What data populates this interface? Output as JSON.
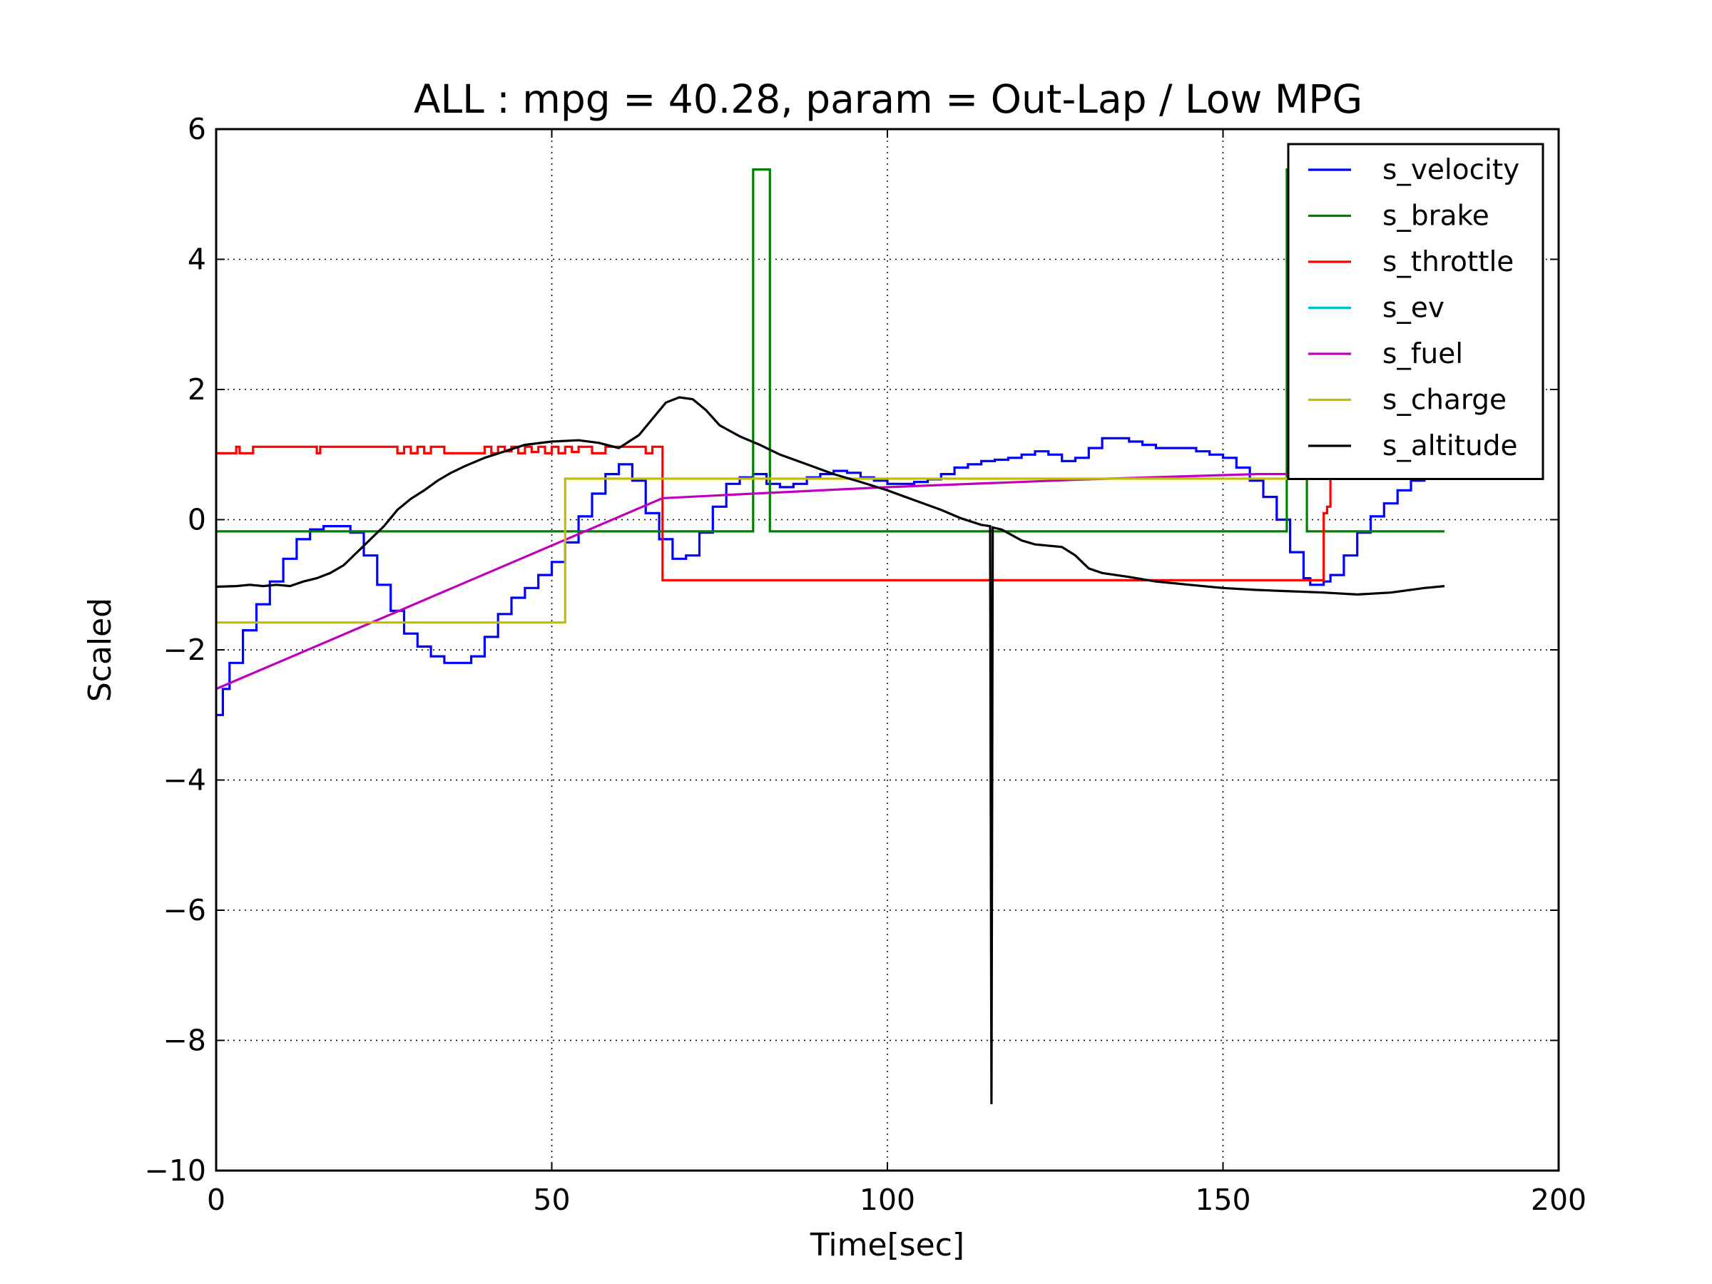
{
  "chart_data": {
    "type": "line",
    "title": "ALL : mpg = 40.28, param = Out-Lap / Low MPG",
    "xlabel": "Time[sec]",
    "ylabel": "Scaled",
    "xlim": [
      0,
      200
    ],
    "ylim": [
      -10,
      6
    ],
    "xticks": [
      0,
      50,
      100,
      150,
      200
    ],
    "yticks": [
      -10,
      -8,
      -6,
      -4,
      -2,
      0,
      2,
      4,
      6
    ],
    "xtick_labels": [
      "0",
      "50",
      "100",
      "150",
      "200"
    ],
    "ytick_labels": [
      "−10",
      "−8",
      "−6",
      "−4",
      "−2",
      "0",
      "2",
      "4",
      "6"
    ],
    "grid": true,
    "legend_position": "top-right",
    "series": [
      {
        "name": "s_velocity",
        "color": "#0000ff",
        "step": true,
        "x": [
          0,
          1,
          2,
          4,
          6,
          8,
          10,
          12,
          14,
          16,
          18,
          20,
          22,
          24,
          26,
          28,
          30,
          32,
          34,
          36,
          38,
          40,
          42,
          44,
          46,
          48,
          50,
          52,
          54,
          56,
          58,
          60,
          62,
          64,
          66,
          68,
          70,
          72,
          74,
          76,
          78,
          80,
          82,
          84,
          86,
          88,
          90,
          92,
          94,
          96,
          98,
          100,
          102,
          104,
          106,
          108,
          110,
          112,
          114,
          116,
          118,
          120,
          122,
          124,
          126,
          128,
          130,
          132,
          134,
          136,
          138,
          140,
          142,
          144,
          146,
          148,
          150,
          152,
          154,
          156,
          158,
          160,
          162,
          163,
          164,
          165,
          166,
          168,
          170,
          172,
          174,
          176,
          178,
          180,
          183
        ],
        "y": [
          -3.0,
          -2.6,
          -2.2,
          -1.7,
          -1.3,
          -0.95,
          -0.6,
          -0.3,
          -0.15,
          -0.1,
          -0.1,
          -0.2,
          -0.55,
          -1.0,
          -1.4,
          -1.75,
          -1.95,
          -2.1,
          -2.2,
          -2.2,
          -2.1,
          -1.8,
          -1.45,
          -1.2,
          -1.05,
          -0.85,
          -0.65,
          -0.35,
          0.05,
          0.4,
          0.7,
          0.85,
          0.6,
          0.1,
          -0.3,
          -0.6,
          -0.55,
          -0.2,
          0.2,
          0.55,
          0.65,
          0.7,
          0.55,
          0.5,
          0.55,
          0.65,
          0.7,
          0.75,
          0.72,
          0.65,
          0.6,
          0.55,
          0.55,
          0.58,
          0.62,
          0.7,
          0.8,
          0.85,
          0.9,
          0.92,
          0.95,
          1.0,
          1.05,
          1.0,
          0.9,
          0.95,
          1.1,
          1.25,
          1.25,
          1.2,
          1.15,
          1.1,
          1.1,
          1.1,
          1.05,
          1.0,
          0.95,
          0.8,
          0.6,
          0.35,
          0.0,
          -0.5,
          -0.9,
          -1.0,
          -1.0,
          -0.95,
          -0.85,
          -0.55,
          -0.2,
          0.05,
          0.25,
          0.45,
          0.6,
          0.7,
          0.7
        ]
      },
      {
        "name": "s_brake",
        "color": "#008000",
        "step": true,
        "x": [
          0,
          80,
          82.5,
          159.5,
          162.5,
          183
        ],
        "y": [
          -0.18,
          5.38,
          -0.18,
          5.38,
          -0.18,
          -0.18
        ]
      },
      {
        "name": "s_throttle",
        "color": "#ff0000",
        "step": true,
        "x": [
          0,
          3,
          3.5,
          5.5,
          15,
          15.5,
          27,
          28,
          29,
          30,
          31,
          32,
          34,
          36,
          40,
          41,
          42,
          43,
          44,
          45,
          46,
          47,
          48,
          49,
          50,
          51,
          52,
          53,
          54,
          56,
          58,
          60,
          62,
          64,
          65,
          66.5,
          164.5,
          165,
          165.5,
          166
        ],
        "y": [
          1.02,
          1.12,
          1.02,
          1.12,
          1.02,
          1.12,
          1.02,
          1.12,
          1.02,
          1.12,
          1.02,
          1.12,
          1.02,
          1.02,
          1.12,
          1.02,
          1.12,
          1.05,
          1.12,
          1.02,
          1.12,
          1.04,
          1.12,
          1.02,
          1.12,
          1.02,
          1.12,
          1.04,
          1.12,
          1.02,
          1.12,
          1.12,
          1.12,
          1.02,
          1.12,
          -0.93,
          -0.93,
          0.1,
          0.2,
          0.65
        ]
      },
      {
        "name": "s_ev",
        "color": "#00bfbf",
        "step": false,
        "x": [
          0
        ],
        "y": [
          0
        ]
      },
      {
        "name": "s_fuel",
        "color": "#bf00bf",
        "step": false,
        "x": [
          0,
          66.5,
          80,
          100,
          130,
          155,
          164
        ],
        "y": [
          -2.6,
          0.33,
          0.4,
          0.5,
          0.62,
          0.7,
          0.7
        ]
      },
      {
        "name": "s_charge",
        "color": "#bfbf00",
        "step": true,
        "x": [
          0,
          52,
          183
        ],
        "y": [
          -1.58,
          0.63,
          0.63
        ]
      },
      {
        "name": "s_altitude",
        "color": "#000000",
        "step": false,
        "x": [
          0,
          3,
          5,
          7,
          9,
          11,
          13,
          15,
          17,
          19,
          21,
          23,
          25,
          27,
          29,
          31,
          33,
          35,
          37,
          40,
          43,
          46,
          50,
          54,
          57,
          60,
          63,
          65,
          67,
          69,
          71,
          73,
          75,
          78,
          81,
          84,
          88,
          92,
          96,
          100,
          104,
          108,
          111,
          114,
          115.3,
          115.5,
          115.7,
          117,
          120,
          122,
          126,
          128,
          130,
          132,
          136,
          140,
          145,
          150,
          155,
          160,
          165,
          170,
          175,
          180,
          183
        ],
        "y": [
          -1.03,
          -1.02,
          -1.0,
          -1.02,
          -1.0,
          -1.02,
          -0.95,
          -0.9,
          -0.82,
          -0.7,
          -0.5,
          -0.3,
          -0.1,
          0.15,
          0.32,
          0.45,
          0.6,
          0.72,
          0.82,
          0.95,
          1.05,
          1.15,
          1.2,
          1.22,
          1.18,
          1.1,
          1.3,
          1.55,
          1.8,
          1.88,
          1.85,
          1.68,
          1.45,
          1.28,
          1.15,
          1.0,
          0.85,
          0.7,
          0.58,
          0.45,
          0.3,
          0.15,
          0.02,
          -0.08,
          -0.1,
          -8.98,
          -0.12,
          -0.15,
          -0.32,
          -0.38,
          -0.42,
          -0.55,
          -0.75,
          -0.82,
          -0.88,
          -0.95,
          -1.0,
          -1.05,
          -1.08,
          -1.1,
          -1.12,
          -1.15,
          -1.12,
          -1.05,
          -1.02
        ]
      }
    ]
  }
}
